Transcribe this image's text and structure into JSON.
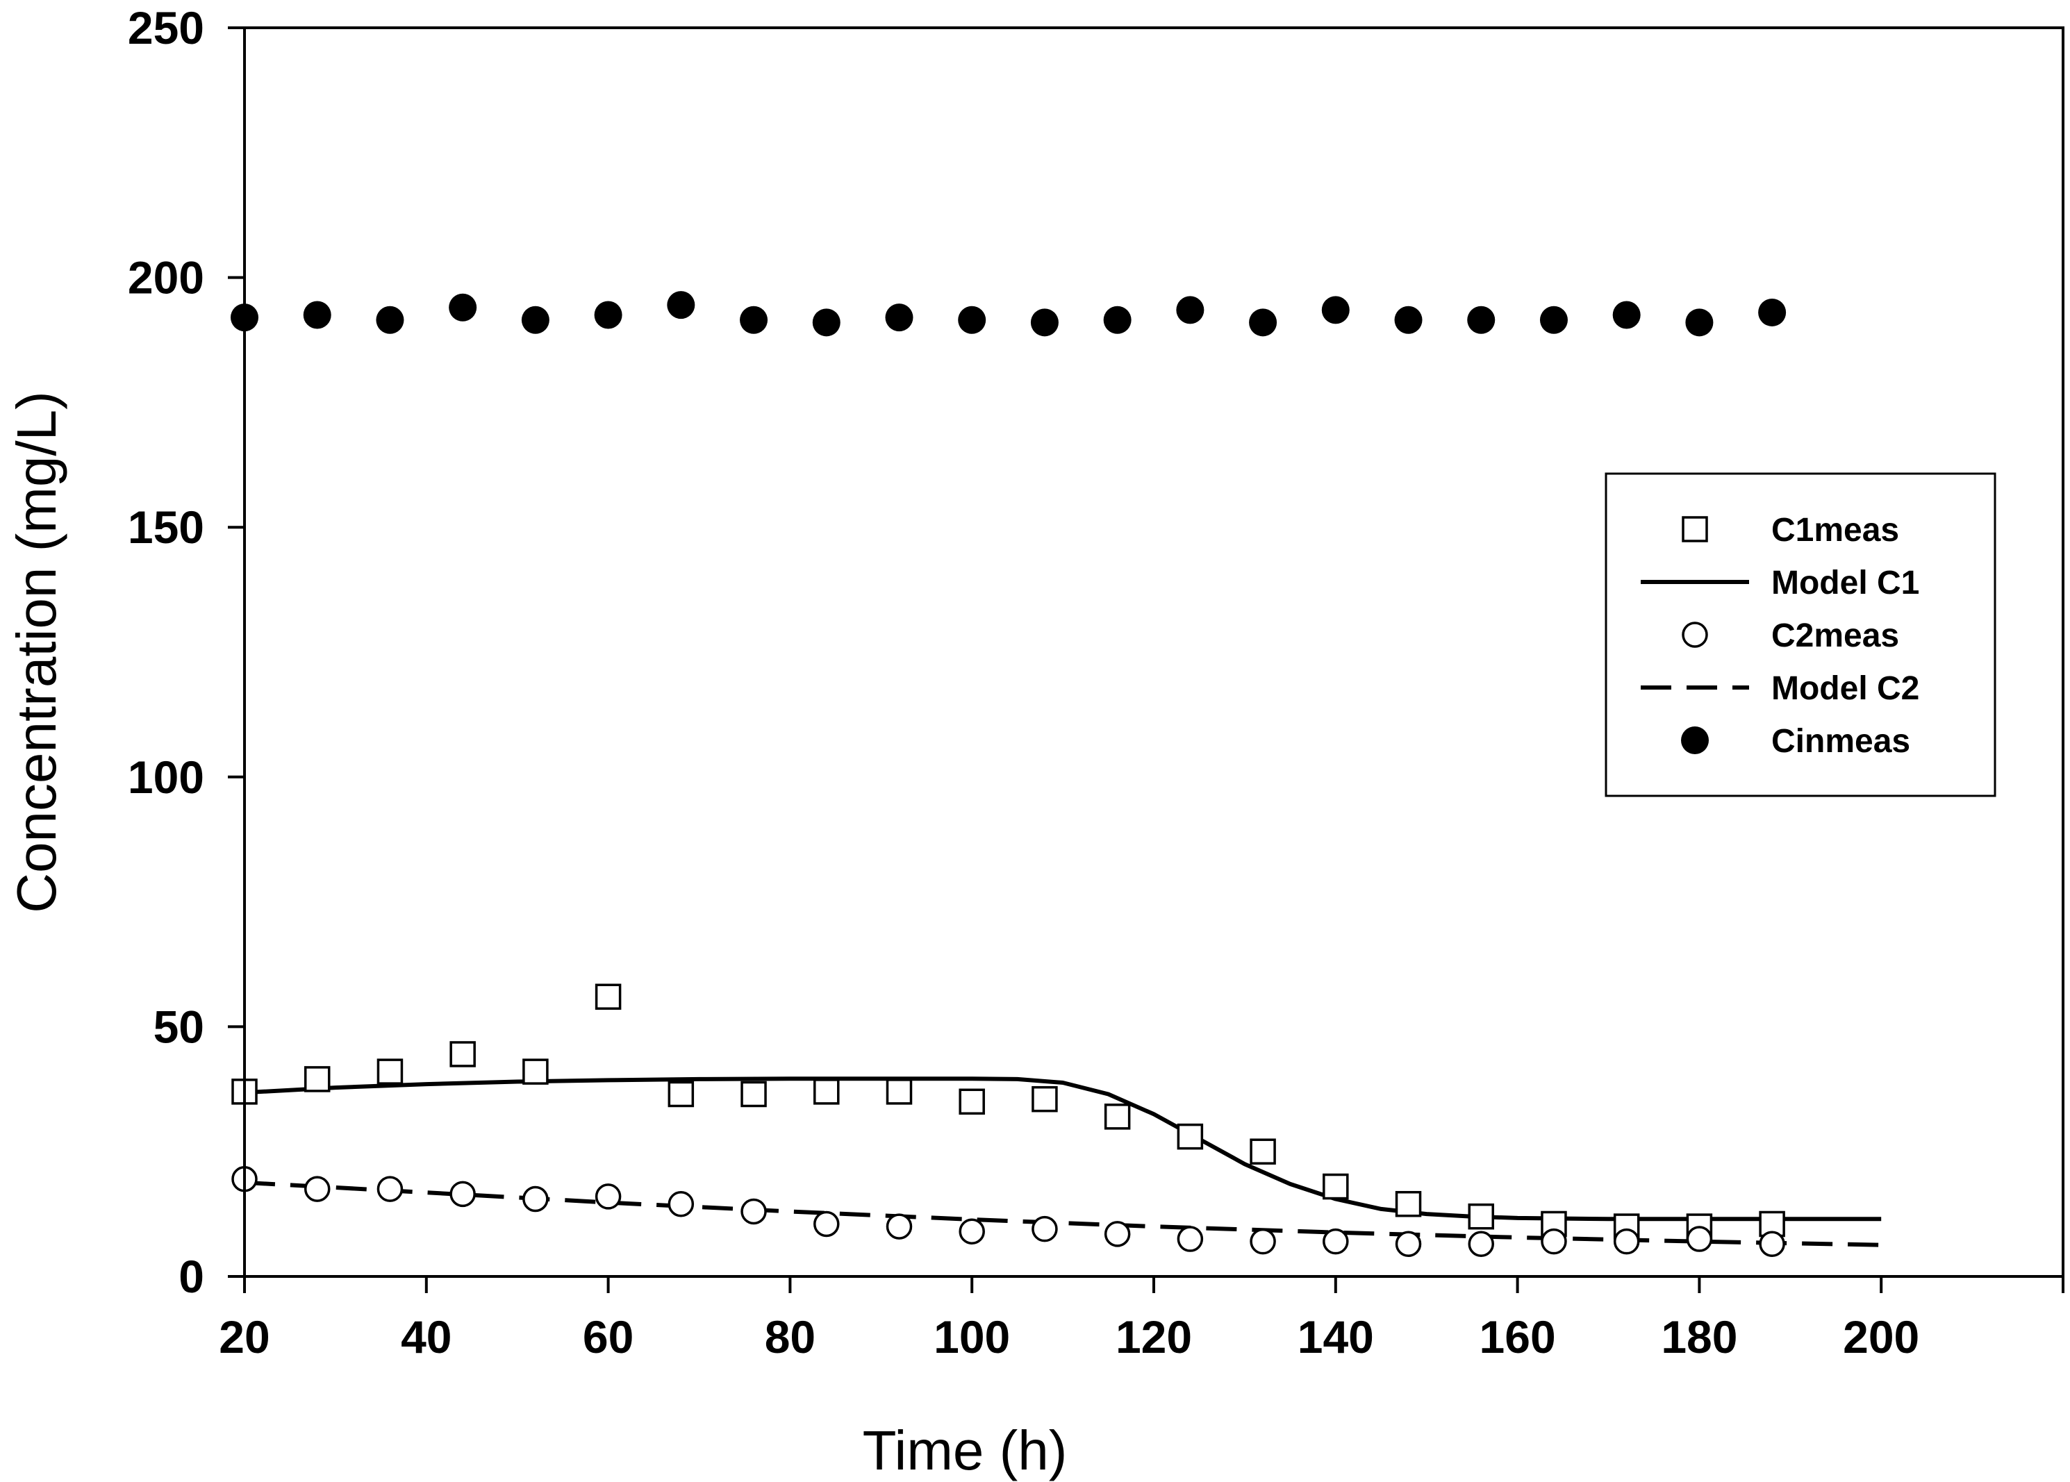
{
  "chart_data": {
    "type": "scatter",
    "title": "",
    "xlabel": "Time (h)",
    "ylabel": "Concentration (mg/L)",
    "xlim": [
      20,
      220
    ],
    "ylim": [
      0,
      250
    ],
    "x_ticks": [
      20,
      40,
      60,
      80,
      100,
      120,
      140,
      160,
      180,
      200
    ],
    "y_ticks": [
      0,
      50,
      100,
      150,
      200,
      250
    ],
    "x_tick_labels": [
      "20",
      "40",
      "60",
      "80",
      "100",
      "120",
      "140",
      "160",
      "180",
      "200"
    ],
    "y_tick_labels": [
      "0",
      "50",
      "100",
      "150",
      "200",
      "250"
    ],
    "grid": false,
    "legend_position": "right-middle",
    "series": [
      {
        "name": "C1meas",
        "kind": "markers",
        "marker": "open-square",
        "x": [
          20,
          28,
          36,
          44,
          52,
          60,
          68,
          76,
          84,
          92,
          100,
          108,
          116,
          124,
          132,
          140,
          148,
          156,
          164,
          172,
          180,
          188
        ],
        "y": [
          37,
          39.5,
          41,
          44.5,
          41,
          56,
          36.5,
          36.5,
          37,
          37,
          35,
          35.5,
          32,
          28,
          25,
          18,
          14.5,
          12,
          10.5,
          10,
          10,
          10.5
        ]
      },
      {
        "name": "Model C1",
        "kind": "line",
        "style": "solid",
        "x": [
          20,
          30,
          40,
          50,
          60,
          70,
          80,
          90,
          100,
          105,
          110,
          115,
          120,
          125,
          130,
          135,
          140,
          145,
          150,
          155,
          160,
          170,
          180,
          190,
          200
        ],
        "y": [
          36.8,
          37.8,
          38.5,
          39,
          39.3,
          39.5,
          39.6,
          39.6,
          39.6,
          39.5,
          38.8,
          36.5,
          32.5,
          27.5,
          22.5,
          18.5,
          15.5,
          13.5,
          12.5,
          12,
          11.7,
          11.5,
          11.5,
          11.5,
          11.5
        ]
      },
      {
        "name": "C2meas",
        "kind": "markers",
        "marker": "open-circle",
        "x": [
          20,
          28,
          36,
          44,
          52,
          60,
          68,
          76,
          84,
          92,
          100,
          108,
          116,
          124,
          132,
          140,
          148,
          156,
          164,
          172,
          180,
          188
        ],
        "y": [
          19.5,
          17.5,
          17.5,
          16.5,
          15.5,
          16,
          14.5,
          13,
          10.5,
          10,
          9,
          9.5,
          8.5,
          7.5,
          7,
          7,
          6.5,
          6.5,
          7,
          7,
          7.5,
          6.5
        ]
      },
      {
        "name": "Model C2",
        "kind": "line",
        "style": "dashed",
        "x": [
          20,
          40,
          60,
          80,
          100,
          120,
          140,
          160,
          180,
          200
        ],
        "y": [
          18.8,
          16.8,
          14.8,
          13,
          11.4,
          10,
          8.8,
          7.8,
          7,
          6.3
        ]
      },
      {
        "name": "Cinmeas",
        "kind": "markers",
        "marker": "filled-circle",
        "x": [
          20,
          28,
          36,
          44,
          52,
          60,
          68,
          76,
          84,
          92,
          100,
          108,
          116,
          124,
          132,
          140,
          148,
          156,
          164,
          172,
          180,
          188
        ],
        "y": [
          192,
          192.5,
          191.5,
          194,
          191.5,
          192.5,
          194.5,
          191.5,
          191,
          192,
          191.5,
          191,
          191.5,
          193.5,
          191,
          193.5,
          191.5,
          191.5,
          191.5,
          192.5,
          191,
          193
        ]
      }
    ]
  }
}
